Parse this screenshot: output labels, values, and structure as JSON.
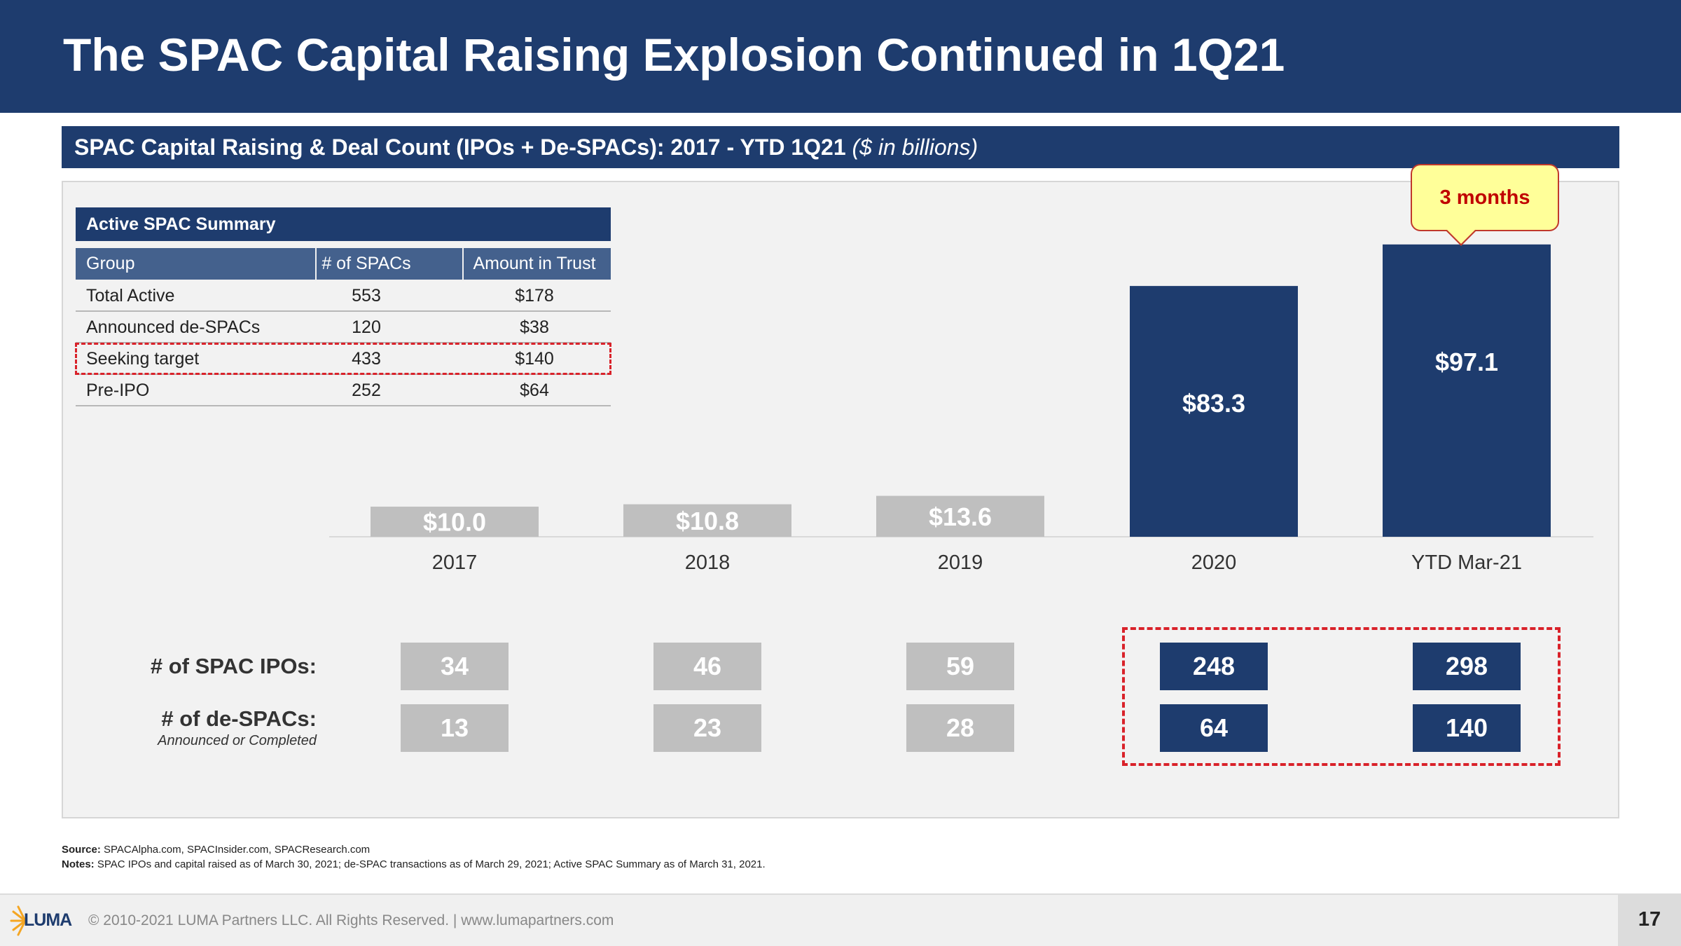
{
  "title": "The SPAC Capital Raising Explosion Continued in 1Q21",
  "subtitle": {
    "bold": "SPAC Capital Raising & Deal Count (IPOs + De-SPACs): 2017 - YTD 1Q21",
    "italic": "($ in billions)"
  },
  "summary": {
    "title": "Active SPAC Summary",
    "columns": [
      "Group",
      "# of SPACs",
      "Amount in Trust"
    ],
    "rows": [
      [
        "Total Active",
        "553",
        "$178"
      ],
      [
        "Announced de-SPACs",
        "120",
        "$38"
      ],
      [
        "Seeking target",
        "433",
        "$140"
      ],
      [
        "Pre-IPO",
        "252",
        "$64"
      ]
    ],
    "highlighted_row": "Seeking target"
  },
  "chart_data": {
    "type": "bar",
    "categories": [
      "2017",
      "2018",
      "2019",
      "2020",
      "YTD Mar-21"
    ],
    "values": [
      10.0,
      10.8,
      13.6,
      83.3,
      97.1
    ],
    "value_labels": [
      "$10.0",
      "$10.8",
      "$13.6",
      "$83.3",
      "$97.1"
    ],
    "bar_colors": [
      "#bfbfbf",
      "#bfbfbf",
      "#bfbfbf",
      "#1e3c6e",
      "#1e3c6e"
    ],
    "title": "SPAC Capital Raising & Deal Count (IPOs + De-SPACs): 2017 - YTD 1Q21",
    "unit": "$ in billions",
    "ylim": [
      0,
      108
    ],
    "grid": false,
    "annotation": "3 months"
  },
  "counts": {
    "ipo_label": "# of SPAC IPOs:",
    "despac_label": "# of de-SPACs:",
    "despac_sublabel": "Announced or Completed",
    "ipos": [
      "34",
      "46",
      "59",
      "248",
      "298"
    ],
    "despacs": [
      "13",
      "23",
      "28",
      "64",
      "140"
    ]
  },
  "colors": {
    "navy": "#1e3c6e",
    "grey": "#bfbfbf",
    "highlight": "#d9222a",
    "callout_fill": "#ffff99"
  },
  "source": {
    "label": "Source:",
    "text": "SPACAlpha.com, SPACInsider.com, SPACResearch.com",
    "notes_label": "Notes:",
    "notes": "SPAC IPOs and capital raised as of March 30, 2021; de-SPAC transactions as of March 29, 2021; Active SPAC Summary as of March 31, 2021."
  },
  "footer": {
    "copyright": "© 2010-2021 LUMA Partners LLC. All Rights Reserved. | www.lumapartners.com",
    "logo": "LUMA",
    "page": "17"
  }
}
